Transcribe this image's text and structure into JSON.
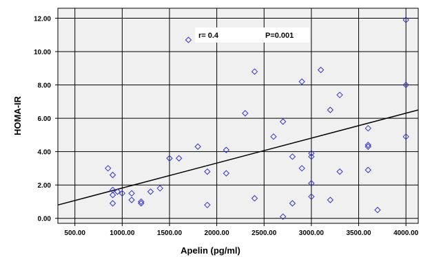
{
  "chart_data": {
    "type": "scatter",
    "xlabel": "Apelin (pg/ml)",
    "ylabel": "HOMA-IR",
    "xlim": [
      320,
      4130
    ],
    "ylim": [
      -0.3,
      12.6
    ],
    "x_ticks": [
      500,
      1000,
      1500,
      2000,
      2500,
      3000,
      3500,
      4000
    ],
    "x_tick_labels": [
      "500.00",
      "1000.00",
      "1500.00",
      "2000.00",
      "2500.00",
      "3000.00",
      "3500.00",
      "4000.00"
    ],
    "y_ticks": [
      0,
      2,
      4,
      6,
      8,
      10,
      12
    ],
    "y_tick_labels": [
      "0.00",
      "2.00",
      "4.00",
      "6.00",
      "8.00",
      "10.00",
      "12.00"
    ],
    "grid": true,
    "background": "#f0f0f0",
    "marker_color": "#3333cc",
    "marker": "diamond-open",
    "annotation": {
      "r_text": "r= 0.4",
      "p_text": "P=0.001"
    },
    "regression_line": {
      "x": [
        320,
        4130
      ],
      "y": [
        0.8,
        6.5
      ]
    },
    "points": [
      {
        "x": 850,
        "y": 3.0
      },
      {
        "x": 900,
        "y": 2.6
      },
      {
        "x": 900,
        "y": 1.7
      },
      {
        "x": 900,
        "y": 1.4
      },
      {
        "x": 900,
        "y": 0.9
      },
      {
        "x": 950,
        "y": 1.6
      },
      {
        "x": 1000,
        "y": 1.5
      },
      {
        "x": 1100,
        "y": 1.5
      },
      {
        "x": 1100,
        "y": 1.1
      },
      {
        "x": 1200,
        "y": 1.0
      },
      {
        "x": 1200,
        "y": 0.9
      },
      {
        "x": 1300,
        "y": 1.6
      },
      {
        "x": 1400,
        "y": 1.8
      },
      {
        "x": 1500,
        "y": 3.6
      },
      {
        "x": 1600,
        "y": 3.6
      },
      {
        "x": 1700,
        "y": 10.7
      },
      {
        "x": 1800,
        "y": 4.3
      },
      {
        "x": 1900,
        "y": 2.8
      },
      {
        "x": 1900,
        "y": 0.8
      },
      {
        "x": 2100,
        "y": 4.1
      },
      {
        "x": 2100,
        "y": 2.7
      },
      {
        "x": 2300,
        "y": 6.3
      },
      {
        "x": 2400,
        "y": 8.8
      },
      {
        "x": 2400,
        "y": 1.2
      },
      {
        "x": 2600,
        "y": 4.9
      },
      {
        "x": 2700,
        "y": 5.8
      },
      {
        "x": 2700,
        "y": 0.1
      },
      {
        "x": 2800,
        "y": 3.7
      },
      {
        "x": 2800,
        "y": 0.9
      },
      {
        "x": 2900,
        "y": 8.2
      },
      {
        "x": 2900,
        "y": 3.0
      },
      {
        "x": 3000,
        "y": 3.9
      },
      {
        "x": 3000,
        "y": 3.7
      },
      {
        "x": 3000,
        "y": 2.1
      },
      {
        "x": 3000,
        "y": 1.3
      },
      {
        "x": 3100,
        "y": 8.9
      },
      {
        "x": 3200,
        "y": 6.5
      },
      {
        "x": 3200,
        "y": 1.1
      },
      {
        "x": 3300,
        "y": 7.4
      },
      {
        "x": 3300,
        "y": 2.8
      },
      {
        "x": 3600,
        "y": 5.4
      },
      {
        "x": 3600,
        "y": 4.4
      },
      {
        "x": 3600,
        "y": 4.3
      },
      {
        "x": 3600,
        "y": 2.9
      },
      {
        "x": 3700,
        "y": 0.5
      },
      {
        "x": 4000,
        "y": 11.9
      },
      {
        "x": 4000,
        "y": 8.0
      },
      {
        "x": 4000,
        "y": 4.9
      }
    ]
  }
}
